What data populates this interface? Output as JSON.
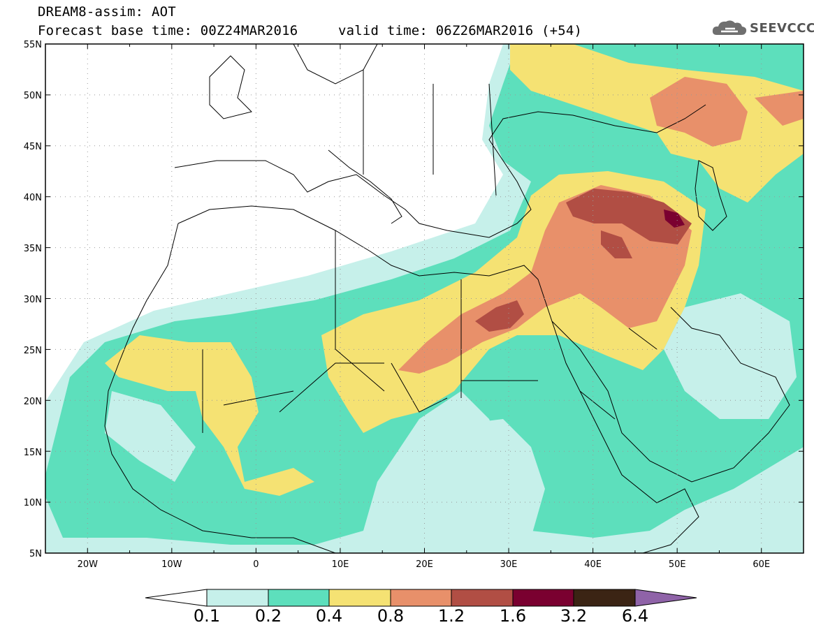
{
  "header": {
    "line1": "DREAM8-assim: AOT",
    "line2": "Forecast base time: 00Z24MAR2016",
    "line2b": "valid time: 06Z26MAR2016 (+54)",
    "logo_text": "SEEVCCC",
    "logo_icon": "cloud-icon"
  },
  "map": {
    "lat_labels": [
      "55N",
      "50N",
      "45N",
      "40N",
      "35N",
      "30N",
      "25N",
      "20N",
      "15N",
      "10N",
      "5N"
    ],
    "lon_labels": [
      "20W",
      "10W",
      "0",
      "10E",
      "20E",
      "30E",
      "40E",
      "50E",
      "60E"
    ],
    "lat_range": [
      5,
      55
    ],
    "lon_range": [
      -25,
      65
    ],
    "gridlines": "dotted",
    "projection": "lat-lon"
  },
  "colorbar": {
    "labels": [
      "0.1",
      "0.2",
      "0.4",
      "0.8",
      "1.2",
      "1.6",
      "3.2",
      "6.4"
    ],
    "colors": [
      "#ffffff",
      "#c6f0ea",
      "#5ddfbc",
      "#f5e273",
      "#e8906a",
      "#b14e44",
      "#7a0030",
      "#3b2414",
      "#8f63a8"
    ]
  }
}
